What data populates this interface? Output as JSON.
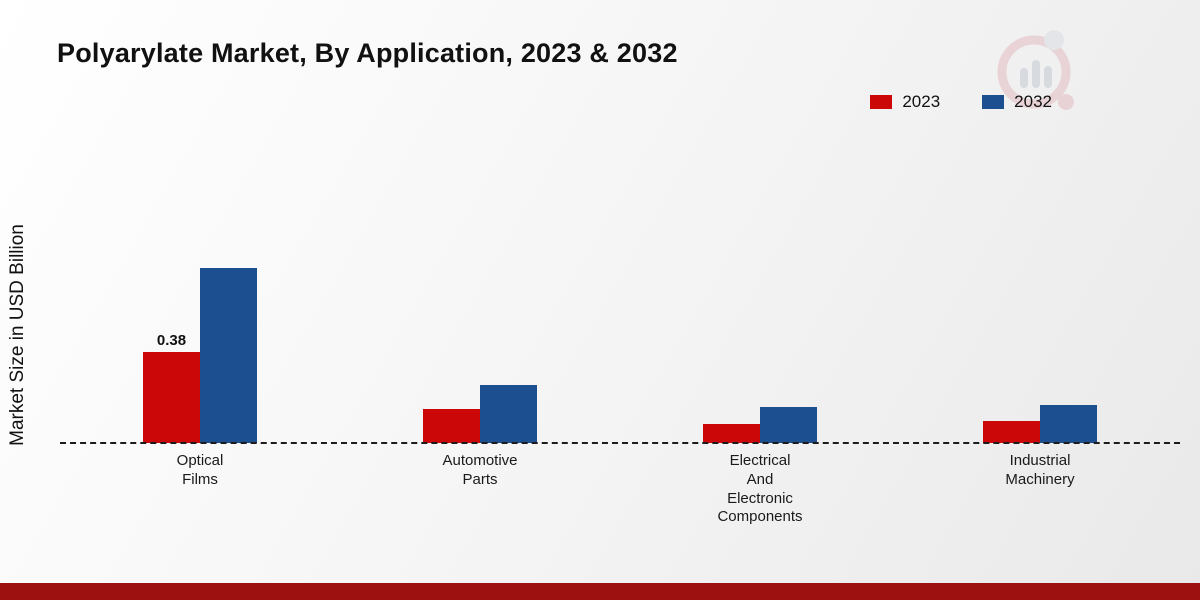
{
  "page": {
    "footer_bar_color": "#9e1111"
  },
  "chart_data": {
    "type": "bar",
    "title": "Polyarylate Market, By Application, 2023 & 2032",
    "ylabel": "Market Size in USD Billion",
    "xlabel": "",
    "categories": [
      "Optical Films",
      "Automotive Parts",
      "Electrical And Electronic Components",
      "Industrial Machinery"
    ],
    "category_lines": [
      [
        "Optical",
        "Films"
      ],
      [
        "Automotive",
        "Parts"
      ],
      [
        "Electrical",
        "And",
        "Electronic",
        "Components"
      ],
      [
        "Industrial",
        "Machinery"
      ]
    ],
    "series": [
      {
        "name": "2023",
        "color": "#cc0707",
        "values": [
          0.38,
          0.14,
          0.08,
          0.09
        ]
      },
      {
        "name": "2032",
        "color": "#1b4f8f",
        "values": [
          0.73,
          0.24,
          0.15,
          0.16
        ]
      }
    ],
    "value_labels": [
      {
        "series": "2023",
        "category_index": 0,
        "text": "0.38"
      }
    ],
    "ylim": [
      0,
      0.8
    ],
    "grid": false,
    "legend_position": "top-right",
    "baseline_style": "dashed"
  }
}
